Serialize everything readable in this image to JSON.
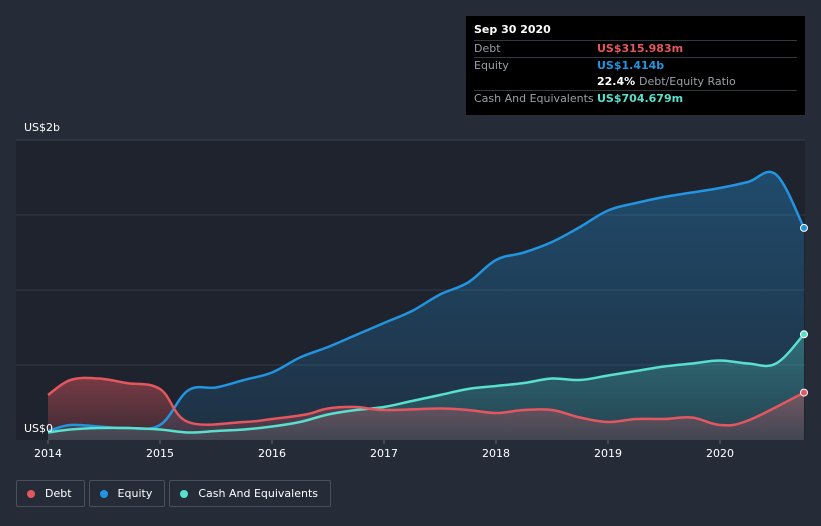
{
  "chart_data": {
    "type": "area",
    "title": "",
    "y_axis": {
      "top_label": "US$2b",
      "bottom_label": "US$0",
      "ylim": [
        0,
        2.0
      ],
      "unit": "US$b"
    },
    "x_axis": {
      "ticks": [
        "2014",
        "2015",
        "2016",
        "2017",
        "2018",
        "2019",
        "2020"
      ],
      "tick_values": [
        2014,
        2015,
        2016,
        2017,
        2018,
        2019,
        2020
      ],
      "xlim": [
        2013.95,
        2020.75
      ]
    },
    "series": [
      {
        "name": "Debt",
        "color": "#e4575f",
        "x": [
          2014.0,
          2014.2,
          2014.45,
          2014.7,
          2015.0,
          2015.25,
          2015.75,
          2016.0,
          2016.3,
          2016.5,
          2016.75,
          2017.0,
          2017.5,
          2017.75,
          2018.0,
          2018.25,
          2018.5,
          2018.75,
          2019.0,
          2019.25,
          2019.5,
          2019.75,
          2020.0,
          2020.25,
          2020.75
        ],
        "values": [
          0.3,
          0.4,
          0.41,
          0.38,
          0.34,
          0.12,
          0.12,
          0.14,
          0.17,
          0.21,
          0.22,
          0.2,
          0.21,
          0.2,
          0.18,
          0.2,
          0.2,
          0.15,
          0.12,
          0.14,
          0.14,
          0.15,
          0.1,
          0.13,
          0.31598
        ]
      },
      {
        "name": "Equity",
        "color": "#2394df",
        "x": [
          2014.0,
          2014.2,
          2014.45,
          2014.7,
          2015.0,
          2015.25,
          2015.5,
          2015.75,
          2016.0,
          2016.25,
          2016.5,
          2016.75,
          2017.0,
          2017.25,
          2017.5,
          2017.75,
          2018.0,
          2018.25,
          2018.5,
          2018.75,
          2019.0,
          2019.25,
          2019.5,
          2019.75,
          2020.0,
          2020.25,
          2020.5,
          2020.75
        ],
        "values": [
          0.06,
          0.1,
          0.09,
          0.08,
          0.1,
          0.33,
          0.35,
          0.4,
          0.45,
          0.55,
          0.62,
          0.7,
          0.78,
          0.86,
          0.97,
          1.05,
          1.2,
          1.25,
          1.32,
          1.42,
          1.53,
          1.58,
          1.62,
          1.65,
          1.68,
          1.72,
          1.77,
          1.414
        ]
      },
      {
        "name": "Cash And Equivalents",
        "color": "#58e0cd",
        "x": [
          2014.0,
          2014.2,
          2014.45,
          2014.7,
          2015.0,
          2015.25,
          2015.5,
          2015.75,
          2016.0,
          2016.25,
          2016.5,
          2016.75,
          2017.0,
          2017.25,
          2017.5,
          2017.75,
          2018.0,
          2018.25,
          2018.5,
          2018.75,
          2019.0,
          2019.25,
          2019.5,
          2019.75,
          2020.0,
          2020.25,
          2020.5,
          2020.75
        ],
        "values": [
          0.05,
          0.07,
          0.08,
          0.08,
          0.07,
          0.05,
          0.06,
          0.07,
          0.09,
          0.12,
          0.17,
          0.2,
          0.22,
          0.26,
          0.3,
          0.34,
          0.36,
          0.38,
          0.41,
          0.4,
          0.43,
          0.46,
          0.49,
          0.51,
          0.53,
          0.51,
          0.51,
          0.704679
        ]
      }
    ],
    "legend": [
      "Debt",
      "Equity",
      "Cash And Equivalents"
    ],
    "legend_position": "bottom-left"
  },
  "tooltip": {
    "date": "Sep 30 2020",
    "rows": {
      "debt_label": "Debt",
      "debt_value": "US$315.983m",
      "equity_label": "Equity",
      "equity_value": "US$1.414b",
      "ratio_value": "22.4%",
      "ratio_label": "Debt/Equity Ratio",
      "cash_label": "Cash And Equivalents",
      "cash_value": "US$704.679m"
    }
  },
  "legend": {
    "debt": "Debt",
    "equity": "Equity",
    "cash": "Cash And Equivalents"
  },
  "colors": {
    "background": "#252b37",
    "plot_area": "#1e232d",
    "debt": "#e4575f",
    "equity": "#2394df",
    "cash": "#58e0cd"
  }
}
